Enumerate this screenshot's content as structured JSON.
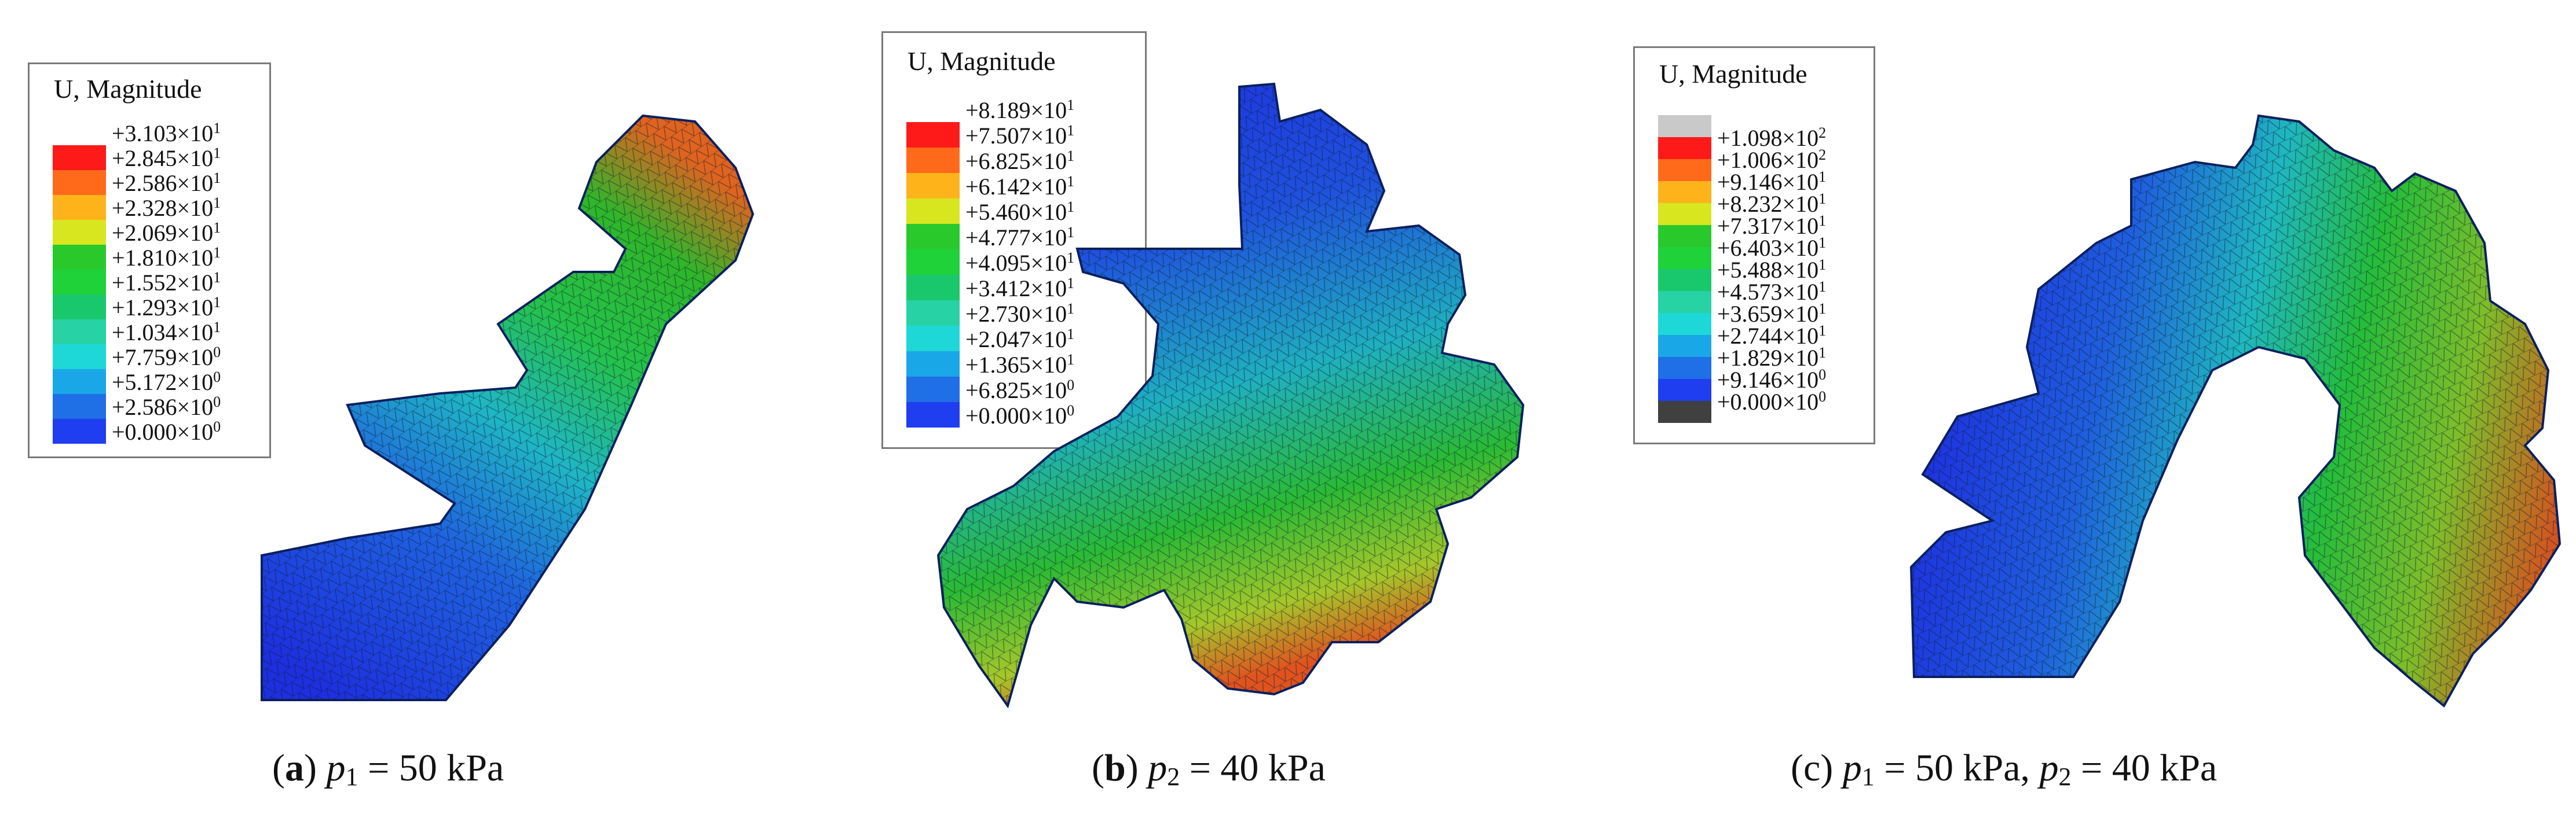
{
  "legend_title": "U, Magnitude",
  "panels": [
    {
      "id": "a",
      "caption": {
        "letter": "a",
        "text": "p1 = 50 kPa",
        "var": "p",
        "sub": "1",
        "rest": " = 50 kPa",
        "var2": "",
        "sub2": "",
        "rest2": ""
      },
      "legend_values": [
        "+3.103×10^1",
        "+2.845×10^1",
        "+2.586×10^1",
        "+2.328×10^1",
        "+2.069×10^1",
        "+1.810×10^1",
        "+1.552×10^1",
        "+1.293×10^1",
        "+1.034×10^1",
        "+7.759×10^0",
        "+5.172×10^0",
        "+2.586×10^0",
        "+0.000×10^0"
      ],
      "legend_colors": [
        "#ff1a1a",
        "#ff6a1a",
        "#ffb31a",
        "#d8e620",
        "#29c92c",
        "#1fd23a",
        "#19c86d",
        "#27d2a5",
        "#1ed8d8",
        "#1aa7e8",
        "#1f6fe6",
        "#1e3ef0"
      ]
    },
    {
      "id": "b",
      "caption": {
        "letter": "b",
        "text": "p2 = 40 kPa",
        "var": "p",
        "sub": "2",
        "rest": " = 40 kPa",
        "var2": "",
        "sub2": "",
        "rest2": ""
      },
      "legend_values": [
        "+8.189×10^1",
        "+7.507×10^1",
        "+6.825×10^1",
        "+6.142×10^1",
        "+5.460×10^1",
        "+4.777×10^1",
        "+4.095×10^1",
        "+3.412×10^1",
        "+2.730×10^1",
        "+2.047×10^1",
        "+1.365×10^1",
        "+6.825×10^0",
        "+0.000×10^0"
      ],
      "legend_colors": [
        "#ff1a1a",
        "#ff6a1a",
        "#ffb31a",
        "#d8e620",
        "#29c92c",
        "#1fd23a",
        "#19c86d",
        "#27d2a5",
        "#1ed8d8",
        "#1aa7e8",
        "#1f6fe6",
        "#1e3ef0"
      ]
    },
    {
      "id": "c",
      "caption": {
        "letter": "c",
        "text": "p1 = 50 kPa, p2 = 40 kPa",
        "var": "p",
        "sub": "1",
        "rest": " = 50 kPa, ",
        "var2": "p",
        "sub2": "2",
        "rest2": " = 40 kPa"
      },
      "legend_values": [
        "+1.098×10^2",
        "+1.006×10^2",
        "+9.146×10^1",
        "+8.232×10^1",
        "+7.317×10^1",
        "+6.403×10^1",
        "+5.488×10^1",
        "+4.573×10^1",
        "+3.659×10^1",
        "+2.744×10^1",
        "+1.829×10^1",
        "+9.146×10^0",
        "+0.000×10^0"
      ],
      "legend_colors": [
        "#c9c9c9",
        "#ff1a1a",
        "#ff6a1a",
        "#ffb31a",
        "#d8e620",
        "#29c92c",
        "#1fd23a",
        "#19c86d",
        "#27d2a5",
        "#1ed8d8",
        "#1aa7e8",
        "#1f6fe6",
        "#1e3ef0",
        "#404040"
      ]
    }
  ]
}
